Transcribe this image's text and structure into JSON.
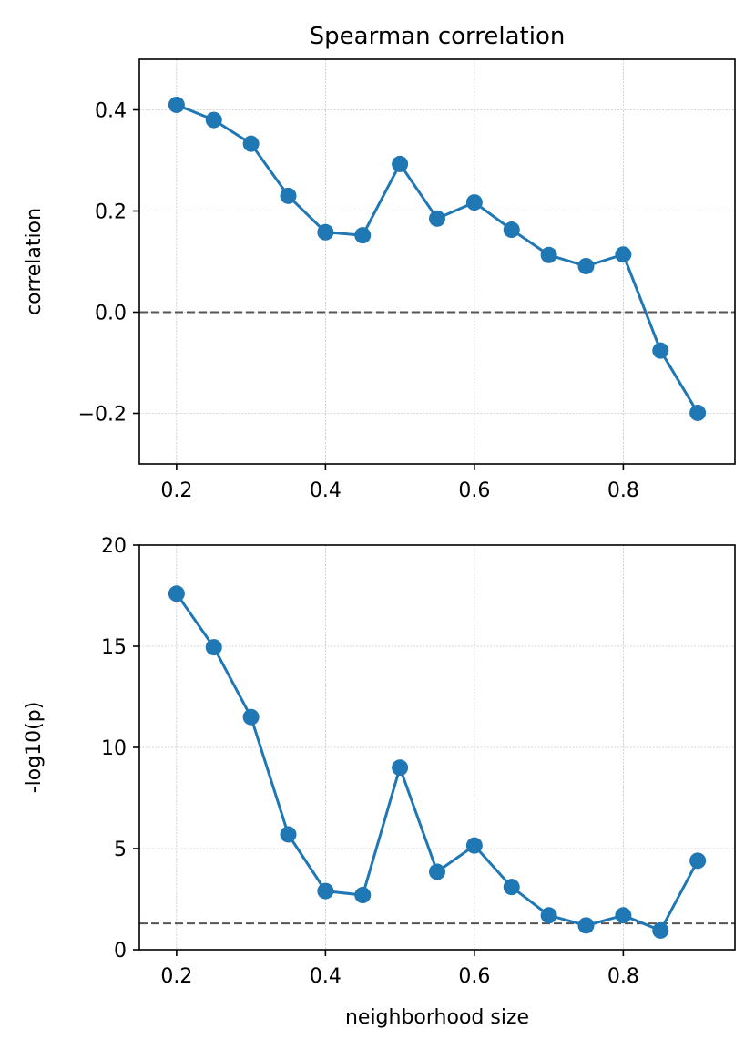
{
  "chart_data": [
    {
      "type": "line",
      "title": "Spearman correlation",
      "xlabel": "",
      "ylabel": "correlation",
      "xlim": [
        0.15,
        0.95
      ],
      "ylim": [
        -0.3,
        0.5
      ],
      "xticks": [
        0.2,
        0.4,
        0.6,
        0.8
      ],
      "xtick_labels": [
        "0.2",
        "0.4",
        "0.6",
        "0.8"
      ],
      "yticks": [
        -0.2,
        0.0,
        0.2,
        0.4
      ],
      "ytick_labels": [
        "−0.2",
        "0.0",
        "0.2",
        "0.4"
      ],
      "grid": true,
      "reference_line": {
        "y": 0.0,
        "style": "dashed",
        "color": "#555555"
      },
      "series": [
        {
          "name": "correlation",
          "color": "#1f77b4",
          "x": [
            0.2,
            0.25,
            0.3,
            0.35,
            0.4,
            0.45,
            0.5,
            0.55,
            0.6,
            0.65,
            0.7,
            0.75,
            0.8,
            0.85,
            0.9
          ],
          "y": [
            0.41,
            0.38,
            0.333,
            0.23,
            0.158,
            0.152,
            0.293,
            0.185,
            0.217,
            0.163,
            0.113,
            0.091,
            0.114,
            -0.076,
            -0.199
          ]
        }
      ]
    },
    {
      "type": "line",
      "title": "",
      "xlabel": "neighborhood size",
      "ylabel": "-log10(p)",
      "xlim": [
        0.15,
        0.95
      ],
      "ylim": [
        0,
        20
      ],
      "xticks": [
        0.2,
        0.4,
        0.6,
        0.8
      ],
      "xtick_labels": [
        "0.2",
        "0.4",
        "0.6",
        "0.8"
      ],
      "yticks": [
        0,
        5,
        10,
        15,
        20
      ],
      "ytick_labels": [
        "0",
        "5",
        "10",
        "15",
        "20"
      ],
      "grid": true,
      "reference_line": {
        "y": 1.3,
        "style": "dashed",
        "color": "#555555"
      },
      "series": [
        {
          "name": "-log10(p)",
          "color": "#1f77b4",
          "x": [
            0.2,
            0.25,
            0.3,
            0.35,
            0.4,
            0.45,
            0.5,
            0.55,
            0.6,
            0.65,
            0.7,
            0.75,
            0.8,
            0.85,
            0.9
          ],
          "y": [
            17.6,
            14.95,
            11.5,
            5.7,
            2.9,
            2.7,
            9.0,
            3.85,
            5.15,
            3.1,
            1.7,
            1.2,
            1.7,
            0.95,
            4.4
          ]
        }
      ]
    }
  ]
}
